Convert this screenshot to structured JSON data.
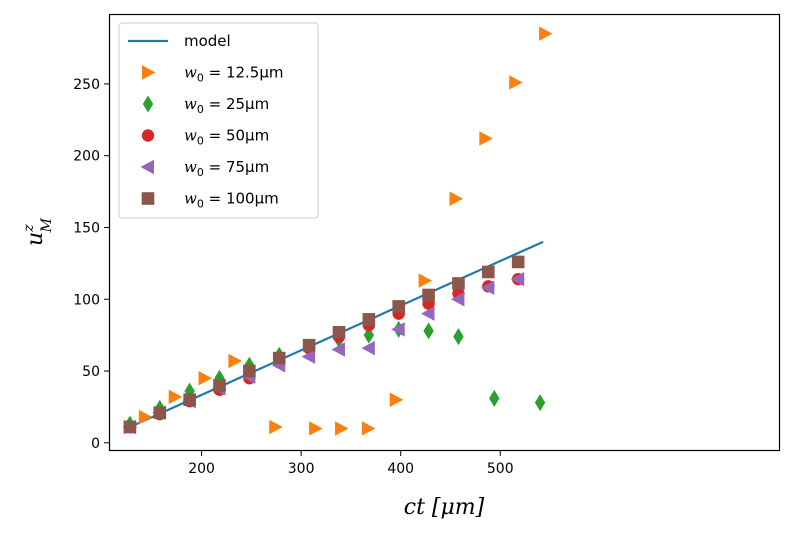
{
  "chart_data": {
    "type": "scatter",
    "title": "",
    "xlabel": "ct [μm]",
    "ylabel": "u_M^z",
    "xlim": [
      108,
      780
    ],
    "ylim": [
      -5,
      298
    ],
    "xticks": [
      200,
      300,
      400,
      500
    ],
    "yticks": [
      0,
      50,
      100,
      150,
      200,
      250
    ],
    "grid": false,
    "legend_position": "top-left",
    "series": [
      {
        "name": "model",
        "kind": "line",
        "color": "#1f77b4",
        "x": [
          128,
          543
        ],
        "y": [
          11,
          140
        ]
      },
      {
        "name": "w_0 = 12.5μm",
        "kind": "marker",
        "marker": "triangle-right",
        "color": "#ff7f0e",
        "x": [
          128,
          143,
          173,
          203,
          233,
          274,
          314,
          340,
          367,
          395,
          424,
          455,
          485,
          515,
          545
        ],
        "y": [
          11,
          18,
          32,
          45,
          57,
          11,
          10,
          10,
          10,
          30,
          113,
          170,
          212,
          251,
          285
        ]
      },
      {
        "name": "w_0 = 25μm",
        "kind": "marker",
        "marker": "diamond",
        "color": "#2ca02c",
        "x": [
          128,
          158,
          188,
          218,
          248,
          278,
          308,
          338,
          368,
          398,
          428,
          458,
          494,
          540
        ],
        "y": [
          13,
          24,
          36,
          45,
          54,
          61,
          67,
          72,
          75,
          79,
          78,
          74,
          31,
          28
        ]
      },
      {
        "name": "w_0 = 50μm",
        "kind": "marker",
        "marker": "circle",
        "color": "#d62728",
        "x": [
          128,
          158,
          188,
          218,
          248,
          278,
          308,
          338,
          368,
          398,
          428,
          458,
          488,
          518
        ],
        "y": [
          11,
          20,
          29,
          37,
          45,
          56,
          66,
          74,
          82,
          90,
          97,
          104,
          109,
          114
        ]
      },
      {
        "name": "w_0 = 75μm",
        "kind": "marker",
        "marker": "triangle-left",
        "color": "#9467bd",
        "x": [
          128,
          158,
          188,
          218,
          248,
          278,
          308,
          338,
          368,
          398,
          428,
          458,
          488,
          518
        ],
        "y": [
          11,
          21,
          29,
          38,
          46,
          54,
          60,
          65,
          66,
          79,
          90,
          100,
          108,
          114
        ]
      },
      {
        "name": "w_0 = 100μm",
        "kind": "marker",
        "marker": "square",
        "color": "#8c564b",
        "x": [
          128,
          158,
          188,
          218,
          248,
          278,
          308,
          338,
          368,
          398,
          428,
          458,
          488,
          518
        ],
        "y": [
          11,
          21,
          30,
          40,
          50,
          59,
          68,
          77,
          86,
          95,
          103,
          111,
          119,
          126
        ]
      }
    ]
  },
  "legend": {
    "entries": [
      {
        "prefix": "",
        "subscript": "",
        "suffix": "model"
      },
      {
        "prefix": "w",
        "subscript": "0",
        "suffix": " = 12.5μm"
      },
      {
        "prefix": "w",
        "subscript": "0",
        "suffix": " = 25μm"
      },
      {
        "prefix": "w",
        "subscript": "0",
        "suffix": " = 50μm"
      },
      {
        "prefix": "w",
        "subscript": "0",
        "suffix": " = 75μm"
      },
      {
        "prefix": "w",
        "subscript": "0",
        "suffix": " = 100μm"
      }
    ]
  },
  "axes_text": {
    "xlabel": "ct [μm]",
    "ylabel_main": "u",
    "ylabel_sup": "z",
    "ylabel_sub": "M"
  }
}
